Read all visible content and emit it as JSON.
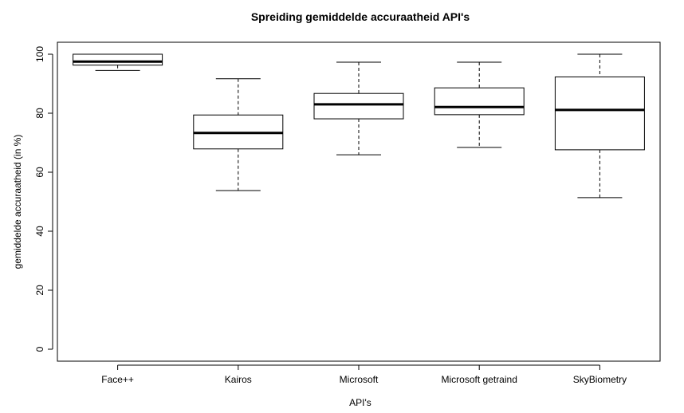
{
  "chart_data": {
    "type": "boxplot",
    "title": "Spreiding gemiddelde accuraatheid API's",
    "xlabel": "API's",
    "ylabel": "gemiddelde accuraatheid (in %)",
    "ylim": [
      0,
      100
    ],
    "yticks": [
      0,
      20,
      40,
      60,
      80,
      100
    ],
    "categories": [
      "Face++",
      "Kairos",
      "Microsoft",
      "Microsoft getraind",
      "SkyBiometry"
    ],
    "boxes": [
      {
        "min": 94.5,
        "q1": 96.3,
        "median": 97.5,
        "q3": 100.0,
        "max": 100.0
      },
      {
        "min": 53.8,
        "q1": 67.9,
        "median": 73.3,
        "q3": 79.4,
        "max": 91.7
      },
      {
        "min": 65.9,
        "q1": 78.1,
        "median": 83.0,
        "q3": 86.7,
        "max": 97.3
      },
      {
        "min": 68.4,
        "q1": 79.5,
        "median": 82.1,
        "q3": 88.6,
        "max": 97.3
      },
      {
        "min": 51.4,
        "q1": 67.6,
        "median": 81.1,
        "q3": 92.3,
        "max": 100.0
      }
    ],
    "grid": false,
    "legend": "none"
  }
}
